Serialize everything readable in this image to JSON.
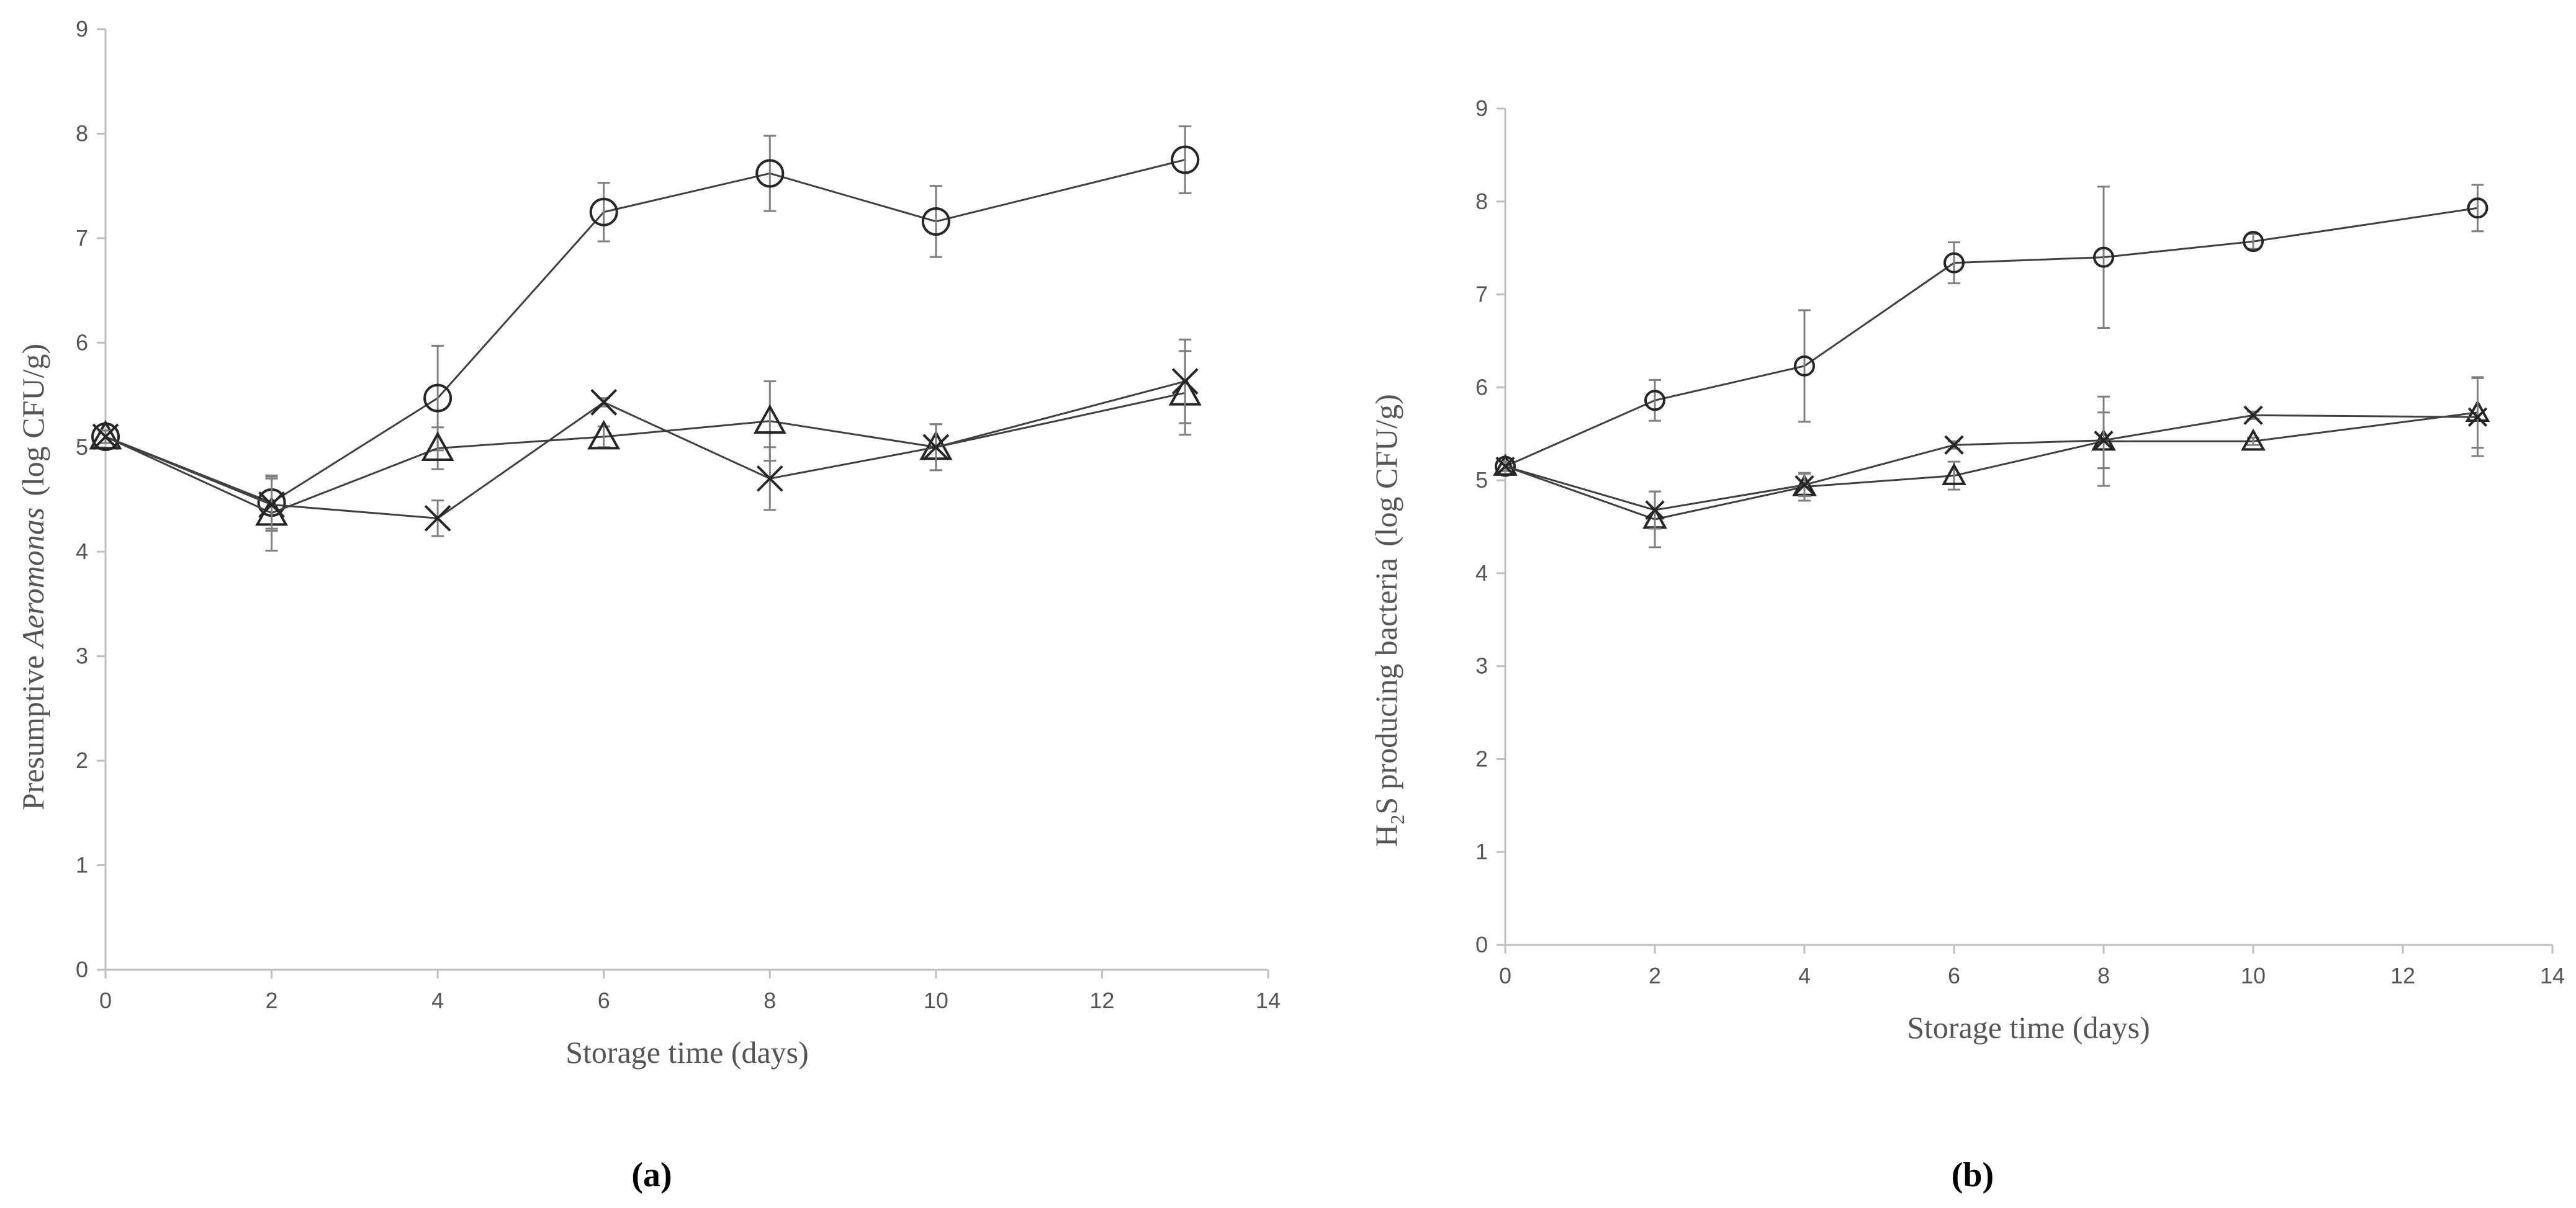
{
  "chart_data": [
    {
      "type": "line",
      "panel_label": "(a)",
      "title": "",
      "xlabel": "Storage time (days)",
      "ylabel_plain": "Presumptive ",
      "ylabel_italic": "Aeromonas",
      "ylabel_units": "(log CFU/g)",
      "xlim": [
        0,
        14
      ],
      "ylim": [
        0,
        9
      ],
      "xticks": [
        "0",
        "2",
        "4",
        "6",
        "8",
        "10",
        "12",
        "14"
      ],
      "yticks": [
        "0",
        "1",
        "2",
        "3",
        "4",
        "5",
        "6",
        "7",
        "8",
        "9"
      ],
      "grid": false,
      "x": [
        0,
        2,
        4,
        6,
        8,
        10,
        13
      ],
      "series": [
        {
          "name": "circle",
          "marker": "circle",
          "values": [
            5.1,
            4.47,
            5.47,
            7.25,
            7.62,
            7.16,
            7.75
          ],
          "errors": [
            0.06,
            0.25,
            0.5,
            0.28,
            0.36,
            0.34,
            0.32
          ]
        },
        {
          "name": "triangle",
          "marker": "triangle",
          "values": [
            5.1,
            4.37,
            4.99,
            5.1,
            5.25,
            5.0,
            5.52
          ],
          "errors": [
            0.06,
            0.36,
            0.2,
            0.1,
            0.38,
            0.22,
            0.4
          ]
        },
        {
          "name": "cross",
          "marker": "cross",
          "values": [
            5.1,
            4.45,
            4.32,
            5.43,
            4.7,
            5.0,
            5.63
          ],
          "errors": [
            0.06,
            0.25,
            0.17,
            0.04,
            0.3,
            0.22,
            0.4
          ]
        }
      ]
    },
    {
      "type": "line",
      "panel_label": "(b)",
      "title": "",
      "xlabel": "Storage time (days)",
      "ylabel_plain": "H",
      "ylabel_sub": "2",
      "ylabel_rest": "S producing bacteria",
      "ylabel_units": "(log CFU/g)",
      "xlim": [
        0,
        14
      ],
      "ylim": [
        0,
        9
      ],
      "xticks": [
        "0",
        "2",
        "4",
        "6",
        "8",
        "10",
        "12",
        "14"
      ],
      "yticks": [
        "0",
        "1",
        "2",
        "3",
        "4",
        "5",
        "6",
        "7",
        "8",
        "9"
      ],
      "grid": false,
      "x": [
        0,
        2,
        4,
        6,
        8,
        10,
        13
      ],
      "series": [
        {
          "name": "circle",
          "marker": "circle",
          "values": [
            5.15,
            5.86,
            6.23,
            7.34,
            7.4,
            7.57,
            7.93
          ],
          "errors": [
            0.05,
            0.22,
            0.6,
            0.22,
            0.76,
            0.08,
            0.25
          ]
        },
        {
          "name": "triangle",
          "marker": "triangle",
          "values": [
            5.15,
            4.58,
            4.93,
            5.05,
            5.42,
            5.42,
            5.73
          ],
          "errors": [
            0.05,
            0.3,
            0.15,
            0.15,
            0.48,
            0.04,
            0.38
          ]
        },
        {
          "name": "cross",
          "marker": "cross",
          "values": [
            5.15,
            4.68,
            4.95,
            5.38,
            5.43,
            5.7,
            5.68
          ],
          "errors": [
            0.05,
            0.2,
            0.12,
            0.04,
            0.3,
            0.04,
            0.42
          ]
        }
      ]
    }
  ]
}
